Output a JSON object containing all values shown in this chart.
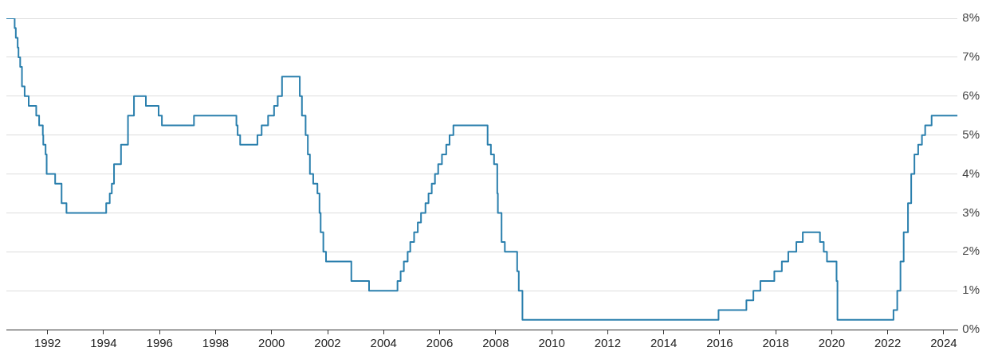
{
  "chart_data": {
    "type": "step",
    "x": [
      "1990-07-13",
      "1990-10-29",
      "1990-11-13",
      "1990-12-07",
      "1990-12-18",
      "1991-01-09",
      "1991-02-01",
      "1991-03-08",
      "1991-04-30",
      "1991-08-06",
      "1991-09-13",
      "1991-10-31",
      "1991-11-06",
      "1991-12-06",
      "1991-12-20",
      "1992-04-09",
      "1992-07-02",
      "1992-09-04",
      "1994-02-04",
      "1994-03-22",
      "1994-04-18",
      "1994-05-17",
      "1994-08-16",
      "1994-11-15",
      "1995-02-01",
      "1995-07-06",
      "1995-12-19",
      "1996-01-31",
      "1997-03-25",
      "1998-09-29",
      "1998-10-15",
      "1998-11-17",
      "1999-06-30",
      "1999-08-24",
      "1999-11-16",
      "2000-02-02",
      "2000-03-21",
      "2000-05-16",
      "2001-01-03",
      "2001-01-31",
      "2001-03-20",
      "2001-04-18",
      "2001-05-15",
      "2001-06-27",
      "2001-08-21",
      "2001-09-17",
      "2001-10-02",
      "2001-11-06",
      "2001-12-11",
      "2002-11-06",
      "2003-06-25",
      "2004-06-30",
      "2004-08-10",
      "2004-09-21",
      "2004-11-10",
      "2004-12-14",
      "2005-02-02",
      "2005-03-22",
      "2005-05-03",
      "2005-06-30",
      "2005-08-09",
      "2005-09-20",
      "2005-11-01",
      "2005-12-13",
      "2006-01-31",
      "2006-03-28",
      "2006-05-10",
      "2006-06-29",
      "2007-09-18",
      "2007-10-31",
      "2007-12-11",
      "2008-01-22",
      "2008-01-30",
      "2008-03-18",
      "2008-04-30",
      "2008-10-08",
      "2008-10-29",
      "2008-12-16",
      "2015-12-17",
      "2016-12-15",
      "2017-03-16",
      "2017-06-15",
      "2017-12-14",
      "2018-03-22",
      "2018-06-14",
      "2018-09-27",
      "2018-12-20",
      "2019-08-01",
      "2019-09-19",
      "2019-10-31",
      "2020-03-04",
      "2020-03-16",
      "2022-03-17",
      "2022-05-05",
      "2022-06-16",
      "2022-07-28",
      "2022-09-22",
      "2022-11-03",
      "2022-12-15",
      "2023-02-02",
      "2023-03-23",
      "2023-05-04",
      "2023-07-27",
      "2024-06-30"
    ],
    "series": [
      {
        "color": "#2a7fad",
        "values": [
          8.0,
          7.75,
          7.5,
          7.25,
          7.0,
          6.75,
          6.25,
          6.0,
          5.75,
          5.5,
          5.25,
          5.0,
          4.75,
          4.5,
          4.0,
          3.75,
          3.25,
          3.0,
          3.25,
          3.5,
          3.75,
          4.25,
          4.75,
          5.5,
          6.0,
          5.75,
          5.5,
          5.25,
          5.5,
          5.25,
          5.0,
          4.75,
          5.0,
          5.25,
          5.5,
          5.75,
          6.0,
          6.5,
          6.0,
          5.5,
          5.0,
          4.5,
          4.0,
          3.75,
          3.5,
          3.0,
          2.5,
          2.0,
          1.75,
          1.25,
          1.0,
          1.25,
          1.5,
          1.75,
          2.0,
          2.25,
          2.5,
          2.75,
          3.0,
          3.25,
          3.5,
          3.75,
          4.0,
          4.25,
          4.5,
          4.75,
          5.0,
          5.25,
          4.75,
          4.5,
          4.25,
          3.5,
          3.0,
          2.25,
          2.0,
          1.5,
          1.0,
          0.25,
          0.5,
          0.75,
          1.0,
          1.25,
          1.5,
          1.75,
          2.0,
          2.25,
          2.5,
          2.25,
          2.0,
          1.75,
          1.25,
          0.25,
          0.5,
          1.0,
          1.75,
          2.5,
          3.25,
          4.0,
          4.5,
          4.75,
          5.0,
          5.25,
          5.5,
          5.5
        ]
      }
    ],
    "xlim": [
      "1990-07-13",
      "2024-06-30"
    ],
    "xticks": [
      "1992",
      "1994",
      "1996",
      "1998",
      "2000",
      "2002",
      "2004",
      "2006",
      "2008",
      "2010",
      "2012",
      "2014",
      "2016",
      "2018",
      "2020",
      "2022",
      "2024"
    ],
    "ylim": [
      0,
      8
    ],
    "yticks": [
      {
        "value": 0,
        "label": "0%"
      },
      {
        "value": 1,
        "label": "1%"
      },
      {
        "value": 2,
        "label": "2%"
      },
      {
        "value": 3,
        "label": "3%"
      },
      {
        "value": 4,
        "label": "4%"
      },
      {
        "value": 5,
        "label": "5%"
      },
      {
        "value": 6,
        "label": "6%"
      },
      {
        "value": 7,
        "label": "7%"
      },
      {
        "value": 8,
        "label": "8%"
      }
    ],
    "grid": "y",
    "legend": false,
    "marker": "none",
    "line_style": "solid"
  }
}
